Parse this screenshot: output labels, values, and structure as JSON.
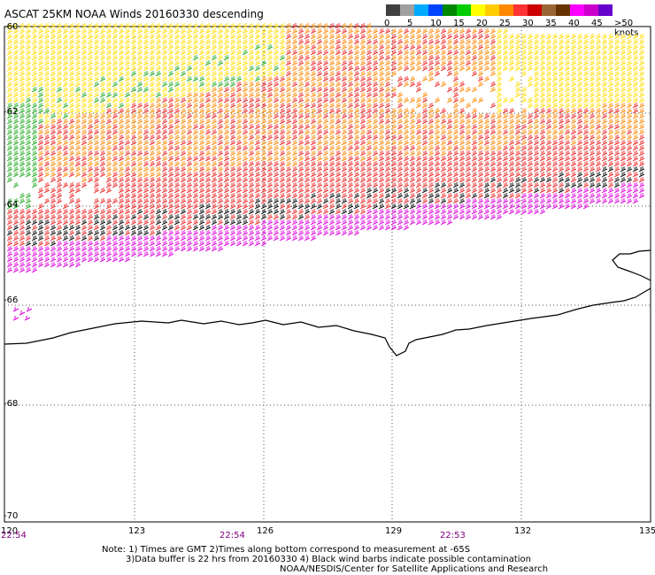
{
  "title": "ASCAT 25KM NOAA Winds 20160330 descending",
  "legend": {
    "segments": [
      {
        "color": "#404040"
      },
      {
        "color": "#a0a0a0"
      },
      {
        "color": "#00aaff"
      },
      {
        "color": "#0044ff"
      },
      {
        "color": "#008800"
      },
      {
        "color": "#00cc00"
      },
      {
        "color": "#ffff00"
      },
      {
        "color": "#ffcc00"
      },
      {
        "color": "#ff8800"
      },
      {
        "color": "#ff3333"
      },
      {
        "color": "#cc0000"
      },
      {
        "color": "#996633"
      },
      {
        "color": "#663300"
      },
      {
        "color": "#ff00ff"
      },
      {
        "color": "#cc00cc"
      },
      {
        "color": "#6600cc"
      }
    ],
    "labels": [
      "0",
      "5",
      "10",
      "15",
      "20",
      "25",
      "30",
      "35",
      "40",
      "45",
      ">50 knots"
    ]
  },
  "axes": {
    "x_ticks": [
      "120",
      "123",
      "126",
      "129",
      "132",
      "135"
    ],
    "y_ticks": [
      "-60",
      "-62",
      "-64",
      "-66",
      "-68",
      "-70"
    ]
  },
  "times": [
    "22:54",
    "22:54",
    "22:53"
  ],
  "notes": [
    "Note: 1) Times are GMT 2)Times along bottom correspond to measurement at -65S",
    "3)Data buffer is 22 hrs from 20160330 4) Black wind barbs indicate possible contamination",
    "NOAA/NESDIS/Center for Satellite Applications and Research"
  ],
  "colors": {
    "yellow": "#ffdd00",
    "orange": "#ff8800",
    "red": "#ee2222",
    "magenta": "#dd00dd",
    "green": "#22aa22",
    "black": "#000000"
  }
}
